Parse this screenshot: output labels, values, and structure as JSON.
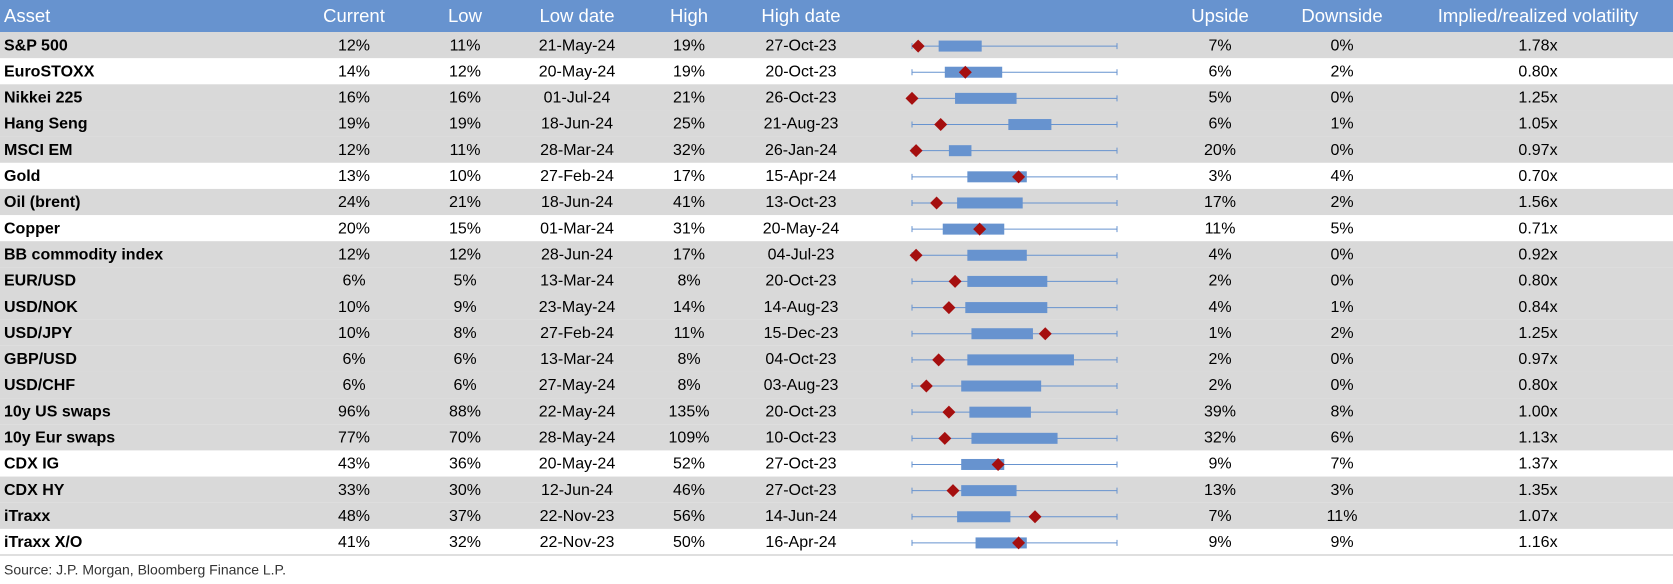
{
  "table": {
    "columns": [
      "Asset",
      "Current",
      "Low",
      "Low date",
      "High",
      "High date",
      "Upside",
      "Downside",
      "Implied/realized volatility"
    ],
    "rows": [
      [
        "S&P 500",
        "12%",
        "11%",
        "21-May-24",
        "19%",
        "27-Oct-23",
        "7%",
        "0%",
        "1.78x"
      ],
      [
        "EuroSTOXX",
        "14%",
        "12%",
        "20-May-24",
        "19%",
        "20-Oct-23",
        "6%",
        "2%",
        "0.80x"
      ],
      [
        "Nikkei 225",
        "16%",
        "16%",
        "01-Jul-24",
        "21%",
        "26-Oct-23",
        "5%",
        "0%",
        "1.25x"
      ],
      [
        "Hang Seng",
        "19%",
        "19%",
        "18-Jun-24",
        "25%",
        "21-Aug-23",
        "6%",
        "1%",
        "1.05x"
      ],
      [
        "MSCI EM",
        "12%",
        "11%",
        "28-Mar-24",
        "32%",
        "26-Jan-24",
        "20%",
        "0%",
        "0.97x"
      ],
      [
        "Gold",
        "13%",
        "10%",
        "27-Feb-24",
        "17%",
        "15-Apr-24",
        "3%",
        "4%",
        "0.70x"
      ],
      [
        "Oil (brent)",
        "24%",
        "21%",
        "18-Jun-24",
        "41%",
        "13-Oct-23",
        "17%",
        "2%",
        "1.56x"
      ],
      [
        "Copper",
        "20%",
        "15%",
        "01-Mar-24",
        "31%",
        "20-May-24",
        "11%",
        "5%",
        "0.71x"
      ],
      [
        "BB commodity index",
        "12%",
        "12%",
        "28-Jun-24",
        "17%",
        "04-Jul-23",
        "4%",
        "0%",
        "0.92x"
      ],
      [
        "EUR/USD",
        "6%",
        "5%",
        "13-Mar-24",
        "8%",
        "20-Oct-23",
        "2%",
        "0%",
        "0.80x"
      ],
      [
        "USD/NOK",
        "10%",
        "9%",
        "23-May-24",
        "14%",
        "14-Aug-23",
        "4%",
        "1%",
        "0.84x"
      ],
      [
        "USD/JPY",
        "10%",
        "8%",
        "27-Feb-24",
        "11%",
        "15-Dec-23",
        "1%",
        "2%",
        "1.25x"
      ],
      [
        "GBP/USD",
        "6%",
        "6%",
        "13-Mar-24",
        "8%",
        "04-Oct-23",
        "2%",
        "0%",
        "0.97x"
      ],
      [
        "USD/CHF",
        "6%",
        "6%",
        "27-May-24",
        "8%",
        "03-Aug-23",
        "2%",
        "0%",
        "0.80x"
      ],
      [
        "10y US swaps",
        "96%",
        "88%",
        "22-May-24",
        "135%",
        "20-Oct-23",
        "39%",
        "8%",
        "1.00x"
      ],
      [
        "10y Eur swaps",
        "77%",
        "70%",
        "28-May-24",
        "109%",
        "10-Oct-23",
        "32%",
        "6%",
        "1.13x"
      ],
      [
        "CDX IG",
        "43%",
        "36%",
        "20-May-24",
        "52%",
        "27-Oct-23",
        "9%",
        "7%",
        "1.37x"
      ],
      [
        "CDX HY",
        "33%",
        "30%",
        "12-Jun-24",
        "46%",
        "27-Oct-23",
        "13%",
        "3%",
        "1.35x"
      ],
      [
        "iTraxx",
        "48%",
        "37%",
        "22-Nov-23",
        "56%",
        "14-Jun-24",
        "7%",
        "11%",
        "1.07x"
      ],
      [
        "iTraxx X/O",
        "41%",
        "32%",
        "22-Nov-23",
        "50%",
        "16-Apr-24",
        "9%",
        "9%",
        "1.16x"
      ]
    ],
    "shaded": [
      true,
      false,
      true,
      true,
      true,
      false,
      true,
      false,
      true,
      true,
      true,
      true,
      true,
      true,
      true,
      true,
      false,
      true,
      true,
      false
    ],
    "range_lim": [
      0,
      100
    ],
    "range_chart": [
      {
        "box": [
          13,
          34
        ],
        "marker": 3
      },
      {
        "box": [
          16,
          44
        ],
        "marker": 26
      },
      {
        "box": [
          21,
          51
        ],
        "marker": 0
      },
      {
        "box": [
          47,
          68
        ],
        "marker": 14
      },
      {
        "box": [
          18,
          29
        ],
        "marker": 2
      },
      {
        "box": [
          27,
          56
        ],
        "marker": 52
      },
      {
        "box": [
          22,
          54
        ],
        "marker": 12
      },
      {
        "box": [
          15,
          45
        ],
        "marker": 33
      },
      {
        "box": [
          27,
          56
        ],
        "marker": 2
      },
      {
        "box": [
          27,
          66
        ],
        "marker": 21
      },
      {
        "box": [
          26,
          66
        ],
        "marker": 18
      },
      {
        "box": [
          29,
          59
        ],
        "marker": 65
      },
      {
        "box": [
          27,
          79
        ],
        "marker": 13
      },
      {
        "box": [
          24,
          63
        ],
        "marker": 7
      },
      {
        "box": [
          28,
          58
        ],
        "marker": 18
      },
      {
        "box": [
          29,
          71
        ],
        "marker": 16
      },
      {
        "box": [
          24,
          45
        ],
        "marker": 42
      },
      {
        "box": [
          24,
          51
        ],
        "marker": 20
      },
      {
        "box": [
          22,
          48
        ],
        "marker": 60
      },
      {
        "box": [
          31,
          56
        ],
        "marker": 52
      }
    ],
    "source": "Source: J.P. Morgan, Bloomberg Finance L.P."
  }
}
